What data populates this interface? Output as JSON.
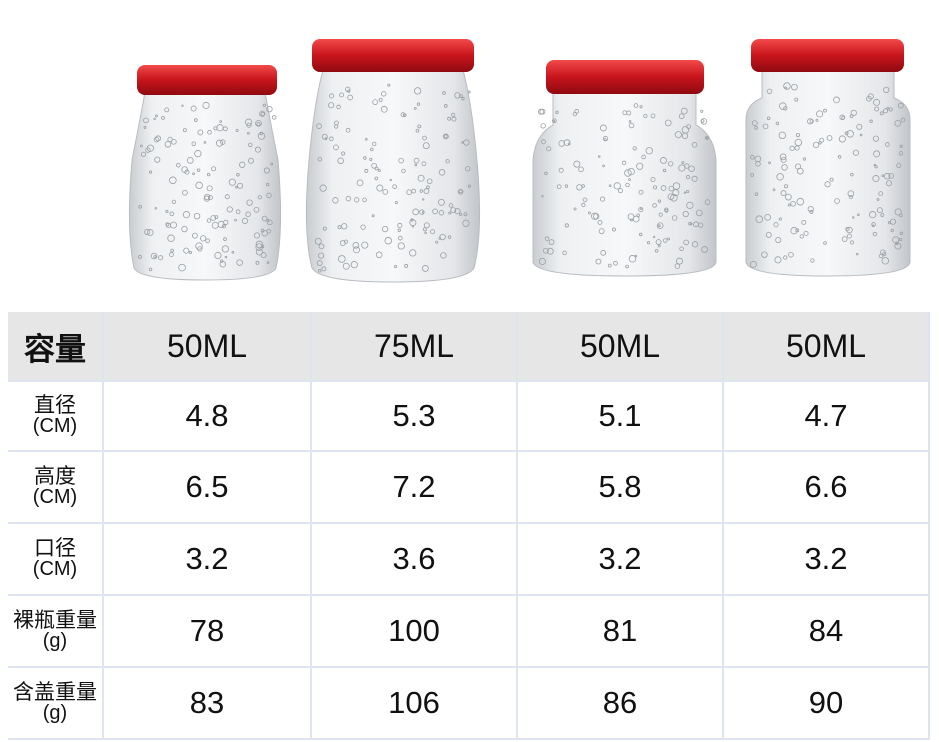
{
  "table": {
    "header": [
      "容量",
      "50ML",
      "75ML",
      "50ML",
      "50ML"
    ],
    "rows": [
      {
        "label": [
          "直径",
          "(CM)"
        ],
        "values": [
          "4.8",
          "5.3",
          "5.1",
          "4.7"
        ]
      },
      {
        "label": [
          "高度",
          "(CM)"
        ],
        "values": [
          "6.5",
          "7.2",
          "5.8",
          "6.6"
        ]
      },
      {
        "label": [
          "口径",
          "(CM)"
        ],
        "values": [
          "3.2",
          "3.6",
          "3.2",
          "3.2"
        ]
      },
      {
        "label": [
          "裸瓶重量",
          "(g)"
        ],
        "values": [
          "78",
          "100",
          "81",
          "84"
        ]
      },
      {
        "label": [
          "含盖重量",
          "(g)"
        ],
        "values": [
          "83",
          "106",
          "86",
          "90"
        ]
      }
    ]
  }
}
